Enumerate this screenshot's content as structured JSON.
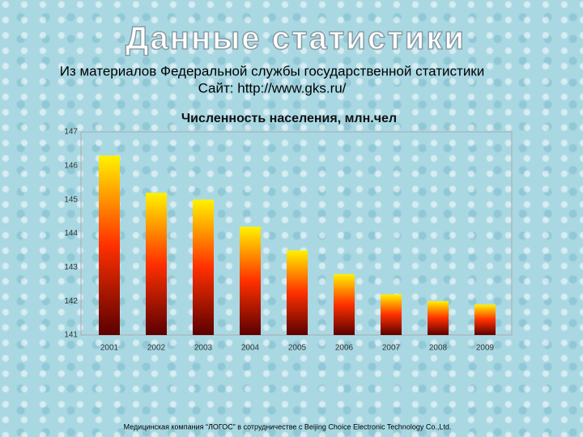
{
  "slide": {
    "title": "Данные статистики",
    "source": "Из материалов Федеральной службы государственной статистики",
    "site": "Сайт: http://www.gks.ru/",
    "footer": "Медицинская компания “ЛОГОС” в сотрудничестве с Beijing Choice Electronic Technology Co.,Ltd."
  },
  "chart_data": {
    "type": "bar",
    "title": "Численность населения, млн.чел",
    "categories": [
      "2001",
      "2002",
      "2003",
      "2004",
      "2005",
      "2006",
      "2007",
      "2008",
      "2009"
    ],
    "values": [
      146.3,
      145.2,
      145.0,
      144.2,
      143.5,
      142.8,
      142.2,
      142.0,
      141.9
    ],
    "colors": [
      "#fff200",
      "#ff3000",
      "#5a0000"
    ],
    "ylim": [
      141,
      147
    ],
    "yticks": [
      141,
      142,
      143,
      144,
      145,
      146,
      147
    ],
    "grid": false
  }
}
